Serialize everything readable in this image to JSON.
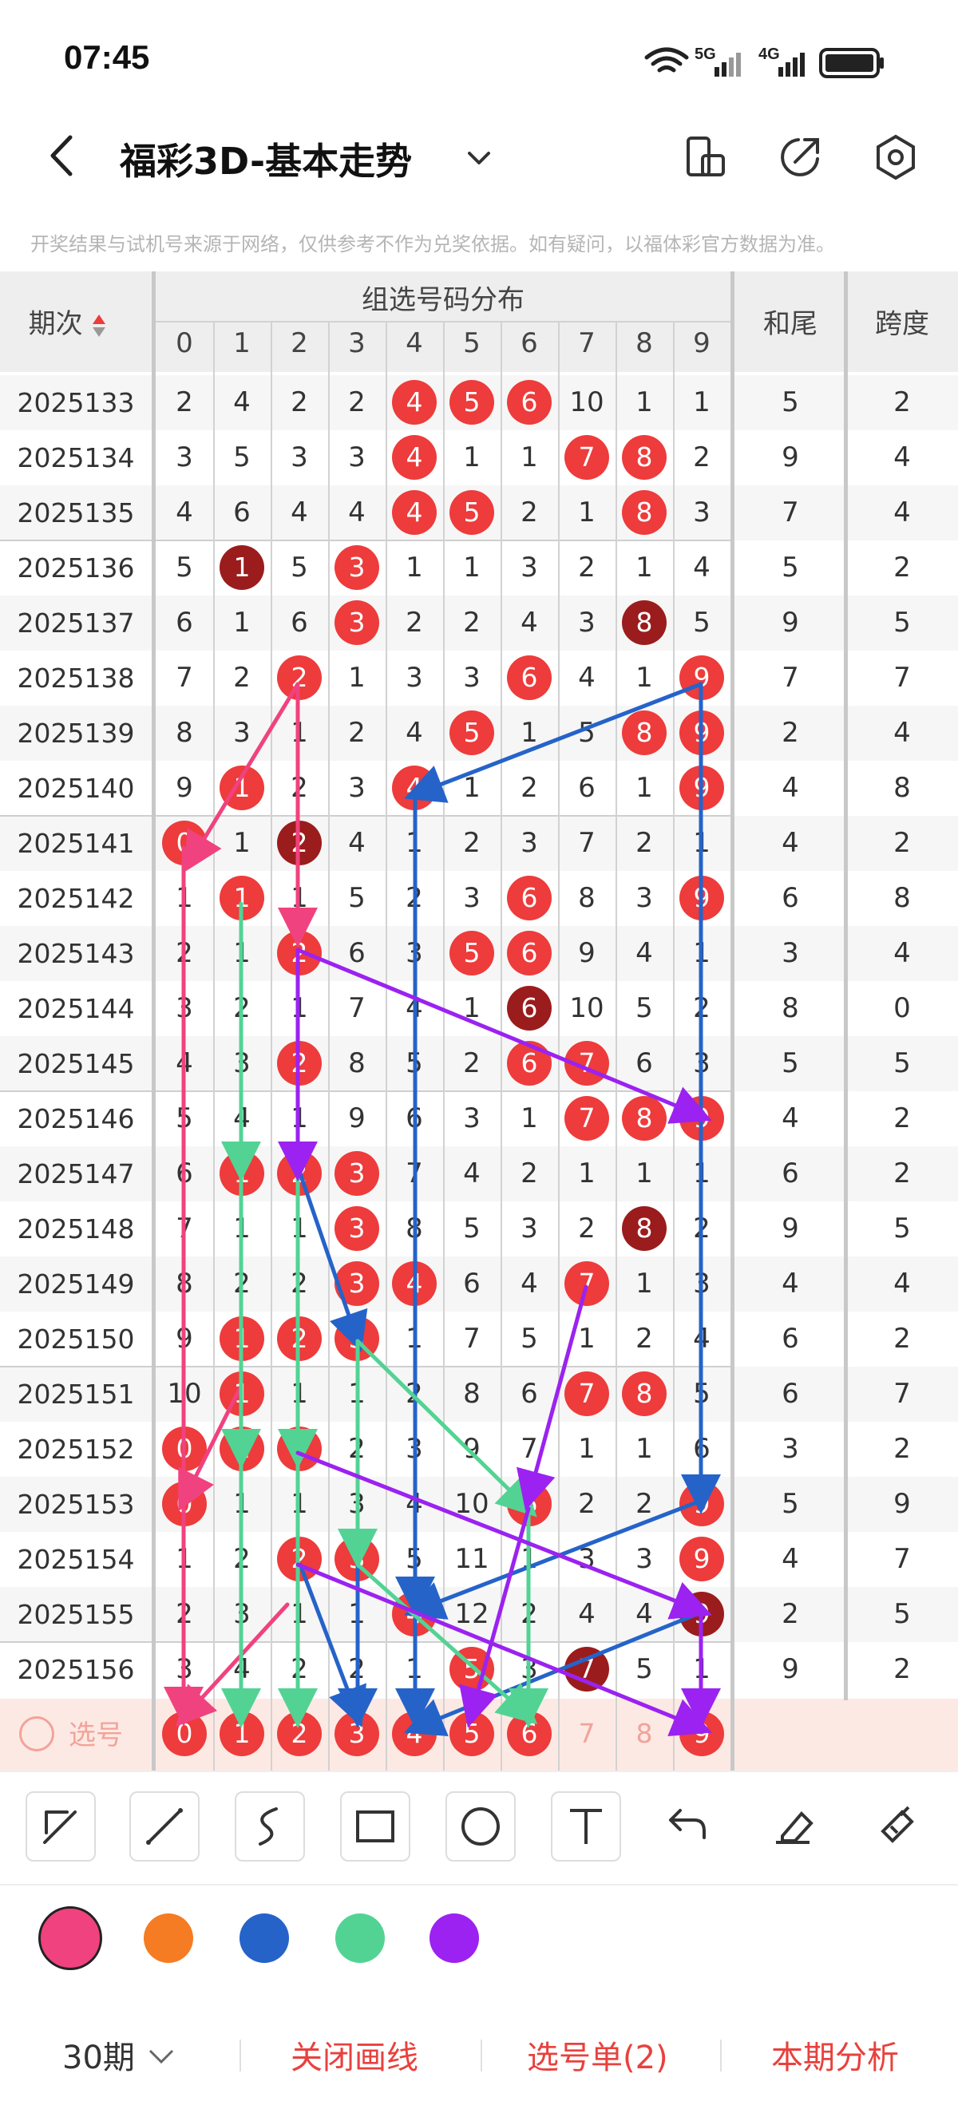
{
  "status_bar": {
    "time": "07:45",
    "net1": "5G",
    "net2": "4G",
    "icons": [
      "wifi-icon",
      "signal-5g-icon",
      "signal-4g-icon",
      "battery-icon"
    ]
  },
  "header": {
    "title": "福彩3D-基本走势",
    "icons": [
      "back-icon",
      "chevron-down-icon",
      "phone-rotate-icon",
      "share-icon",
      "settings-icon"
    ]
  },
  "disclaimer": "开奖结果与试机号来源于网络，仅供参考不作为兑奖依据。如有疑问，以福体彩官方数据为准。",
  "table": {
    "period_header": "期次",
    "group_header": "组选号码分布",
    "sum_tail_header": "和尾",
    "span_header": "跨度",
    "digits": [
      "0",
      "1",
      "2",
      "3",
      "4",
      "5",
      "6",
      "7",
      "8",
      "9"
    ],
    "rows": [
      {
        "period": "2025133",
        "cells": [
          "2",
          "4",
          "2",
          "2",
          "4",
          "5",
          "6",
          "10",
          "1",
          "1"
        ],
        "balls": [
          0,
          0,
          0,
          0,
          1,
          1,
          1,
          0,
          0,
          0
        ],
        "tail": "5",
        "span": "2"
      },
      {
        "period": "2025134",
        "cells": [
          "3",
          "5",
          "3",
          "3",
          "4",
          "1",
          "1",
          "7",
          "8",
          "2"
        ],
        "balls": [
          0,
          0,
          0,
          0,
          1,
          0,
          0,
          1,
          1,
          0
        ],
        "tail": "9",
        "span": "4"
      },
      {
        "period": "2025135",
        "cells": [
          "4",
          "6",
          "4",
          "4",
          "4",
          "5",
          "2",
          "1",
          "8",
          "3"
        ],
        "balls": [
          0,
          0,
          0,
          0,
          1,
          1,
          0,
          0,
          1,
          0
        ],
        "tail": "7",
        "span": "4"
      },
      {
        "period": "2025136",
        "cells": [
          "5",
          "1",
          "5",
          "3",
          "1",
          "1",
          "3",
          "2",
          "1",
          "4"
        ],
        "balls": [
          0,
          2,
          0,
          1,
          0,
          0,
          0,
          0,
          0,
          0
        ],
        "tail": "5",
        "span": "2"
      },
      {
        "period": "2025137",
        "cells": [
          "6",
          "1",
          "6",
          "3",
          "2",
          "2",
          "4",
          "3",
          "8",
          "5"
        ],
        "balls": [
          0,
          0,
          0,
          1,
          0,
          0,
          0,
          0,
          2,
          0
        ],
        "tail": "9",
        "span": "5"
      },
      {
        "period": "2025138",
        "cells": [
          "7",
          "2",
          "2",
          "1",
          "3",
          "3",
          "6",
          "4",
          "1",
          "9"
        ],
        "balls": [
          0,
          0,
          1,
          0,
          0,
          0,
          1,
          0,
          0,
          1
        ],
        "tail": "7",
        "span": "7"
      },
      {
        "period": "2025139",
        "cells": [
          "8",
          "3",
          "1",
          "2",
          "4",
          "5",
          "1",
          "5",
          "8",
          "9"
        ],
        "balls": [
          0,
          0,
          0,
          0,
          0,
          1,
          0,
          0,
          1,
          1
        ],
        "tail": "2",
        "span": "4"
      },
      {
        "period": "2025140",
        "cells": [
          "9",
          "1",
          "2",
          "3",
          "4",
          "1",
          "2",
          "6",
          "1",
          "9"
        ],
        "balls": [
          0,
          1,
          0,
          0,
          1,
          0,
          0,
          0,
          0,
          1
        ],
        "tail": "4",
        "span": "8"
      },
      {
        "period": "2025141",
        "cells": [
          "0",
          "1",
          "2",
          "4",
          "1",
          "2",
          "3",
          "7",
          "2",
          "1"
        ],
        "balls": [
          1,
          0,
          2,
          0,
          0,
          0,
          0,
          0,
          0,
          0
        ],
        "tail": "4",
        "span": "2"
      },
      {
        "period": "2025142",
        "cells": [
          "1",
          "1",
          "1",
          "5",
          "2",
          "3",
          "6",
          "8",
          "3",
          "9"
        ],
        "balls": [
          0,
          1,
          0,
          0,
          0,
          0,
          1,
          0,
          0,
          1
        ],
        "tail": "6",
        "span": "8"
      },
      {
        "period": "2025143",
        "cells": [
          "2",
          "1",
          "2",
          "6",
          "3",
          "5",
          "6",
          "9",
          "4",
          "1"
        ],
        "balls": [
          0,
          0,
          1,
          0,
          0,
          1,
          1,
          0,
          0,
          0
        ],
        "tail": "3",
        "span": "4"
      },
      {
        "period": "2025144",
        "cells": [
          "3",
          "2",
          "1",
          "7",
          "4",
          "1",
          "6",
          "10",
          "5",
          "2"
        ],
        "balls": [
          0,
          0,
          0,
          0,
          0,
          0,
          2,
          0,
          0,
          0
        ],
        "tail": "8",
        "span": "0"
      },
      {
        "period": "2025145",
        "cells": [
          "4",
          "3",
          "2",
          "8",
          "5",
          "2",
          "6",
          "7",
          "6",
          "3"
        ],
        "balls": [
          0,
          0,
          1,
          0,
          0,
          0,
          1,
          1,
          0,
          0
        ],
        "tail": "5",
        "span": "5"
      },
      {
        "period": "2025146",
        "cells": [
          "5",
          "4",
          "1",
          "9",
          "6",
          "3",
          "1",
          "7",
          "8",
          "9"
        ],
        "balls": [
          0,
          0,
          0,
          0,
          0,
          0,
          0,
          1,
          1,
          1
        ],
        "tail": "4",
        "span": "2"
      },
      {
        "period": "2025147",
        "cells": [
          "6",
          "1",
          "2",
          "3",
          "7",
          "4",
          "2",
          "1",
          "1",
          "1"
        ],
        "balls": [
          0,
          1,
          1,
          1,
          0,
          0,
          0,
          0,
          0,
          0
        ],
        "tail": "6",
        "span": "2"
      },
      {
        "period": "2025148",
        "cells": [
          "7",
          "1",
          "1",
          "3",
          "8",
          "5",
          "3",
          "2",
          "8",
          "2"
        ],
        "balls": [
          0,
          0,
          0,
          1,
          0,
          0,
          0,
          0,
          2,
          0
        ],
        "tail": "9",
        "span": "5"
      },
      {
        "period": "2025149",
        "cells": [
          "8",
          "2",
          "2",
          "3",
          "4",
          "6",
          "4",
          "7",
          "1",
          "3"
        ],
        "balls": [
          0,
          0,
          0,
          1,
          1,
          0,
          0,
          1,
          0,
          0
        ],
        "tail": "4",
        "span": "4"
      },
      {
        "period": "2025150",
        "cells": [
          "9",
          "1",
          "2",
          "3",
          "1",
          "7",
          "5",
          "1",
          "2",
          "4"
        ],
        "balls": [
          0,
          1,
          1,
          1,
          0,
          0,
          0,
          0,
          0,
          0
        ],
        "tail": "6",
        "span": "2"
      },
      {
        "period": "2025151",
        "cells": [
          "10",
          "1",
          "1",
          "1",
          "2",
          "8",
          "6",
          "7",
          "8",
          "5"
        ],
        "balls": [
          0,
          1,
          0,
          0,
          0,
          0,
          0,
          1,
          1,
          0
        ],
        "tail": "6",
        "span": "7"
      },
      {
        "period": "2025152",
        "cells": [
          "0",
          "1",
          "2",
          "2",
          "3",
          "9",
          "7",
          "1",
          "1",
          "6"
        ],
        "balls": [
          1,
          1,
          1,
          0,
          0,
          0,
          0,
          0,
          0,
          0
        ],
        "tail": "3",
        "span": "2"
      },
      {
        "period": "2025153",
        "cells": [
          "0",
          "1",
          "1",
          "3",
          "4",
          "10",
          "6",
          "2",
          "2",
          "9"
        ],
        "balls": [
          1,
          0,
          0,
          0,
          0,
          0,
          1,
          0,
          0,
          1
        ],
        "tail": "5",
        "span": "9"
      },
      {
        "period": "2025154",
        "cells": [
          "1",
          "2",
          "2",
          "3",
          "5",
          "11",
          "1",
          "3",
          "3",
          "9"
        ],
        "balls": [
          0,
          0,
          1,
          1,
          0,
          0,
          0,
          0,
          0,
          1
        ],
        "tail": "4",
        "span": "7"
      },
      {
        "period": "2025155",
        "cells": [
          "2",
          "3",
          "1",
          "1",
          "4",
          "12",
          "2",
          "4",
          "4",
          "9"
        ],
        "balls": [
          0,
          0,
          0,
          0,
          1,
          0,
          0,
          0,
          0,
          2
        ],
        "tail": "2",
        "span": "5"
      },
      {
        "period": "2025156",
        "cells": [
          "3",
          "4",
          "2",
          "2",
          "1",
          "5",
          "3",
          "7",
          "5",
          "1"
        ],
        "balls": [
          0,
          0,
          0,
          0,
          0,
          1,
          0,
          2,
          0,
          0
        ],
        "tail": "9",
        "span": "2"
      }
    ],
    "pick_label": "选号",
    "pick_numbers": [
      "0",
      "1",
      "2",
      "3",
      "4",
      "5",
      "6",
      "7",
      "8",
      "9"
    ],
    "pick_selected": [
      1,
      1,
      1,
      1,
      1,
      1,
      1,
      0,
      0,
      1
    ]
  },
  "draw_tools": [
    "select-arrow-icon",
    "line-icon",
    "curve-icon",
    "rectangle-icon",
    "circle-icon",
    "text-icon",
    "undo-icon",
    "eraser-icon",
    "clear-icon"
  ],
  "palette": [
    {
      "name": "pink",
      "color": "#f0427e",
      "selected": true
    },
    {
      "name": "orange",
      "color": "#f57c22",
      "selected": false
    },
    {
      "name": "blue",
      "color": "#2563c9",
      "selected": false
    },
    {
      "name": "green",
      "color": "#52d394",
      "selected": false
    },
    {
      "name": "purple",
      "color": "#9b22f0",
      "selected": false
    }
  ],
  "bottom_bar": {
    "periods": "30期",
    "close_lines": "关闭画线",
    "pick_list": "选号单(2)",
    "analysis": "本期分析"
  }
}
